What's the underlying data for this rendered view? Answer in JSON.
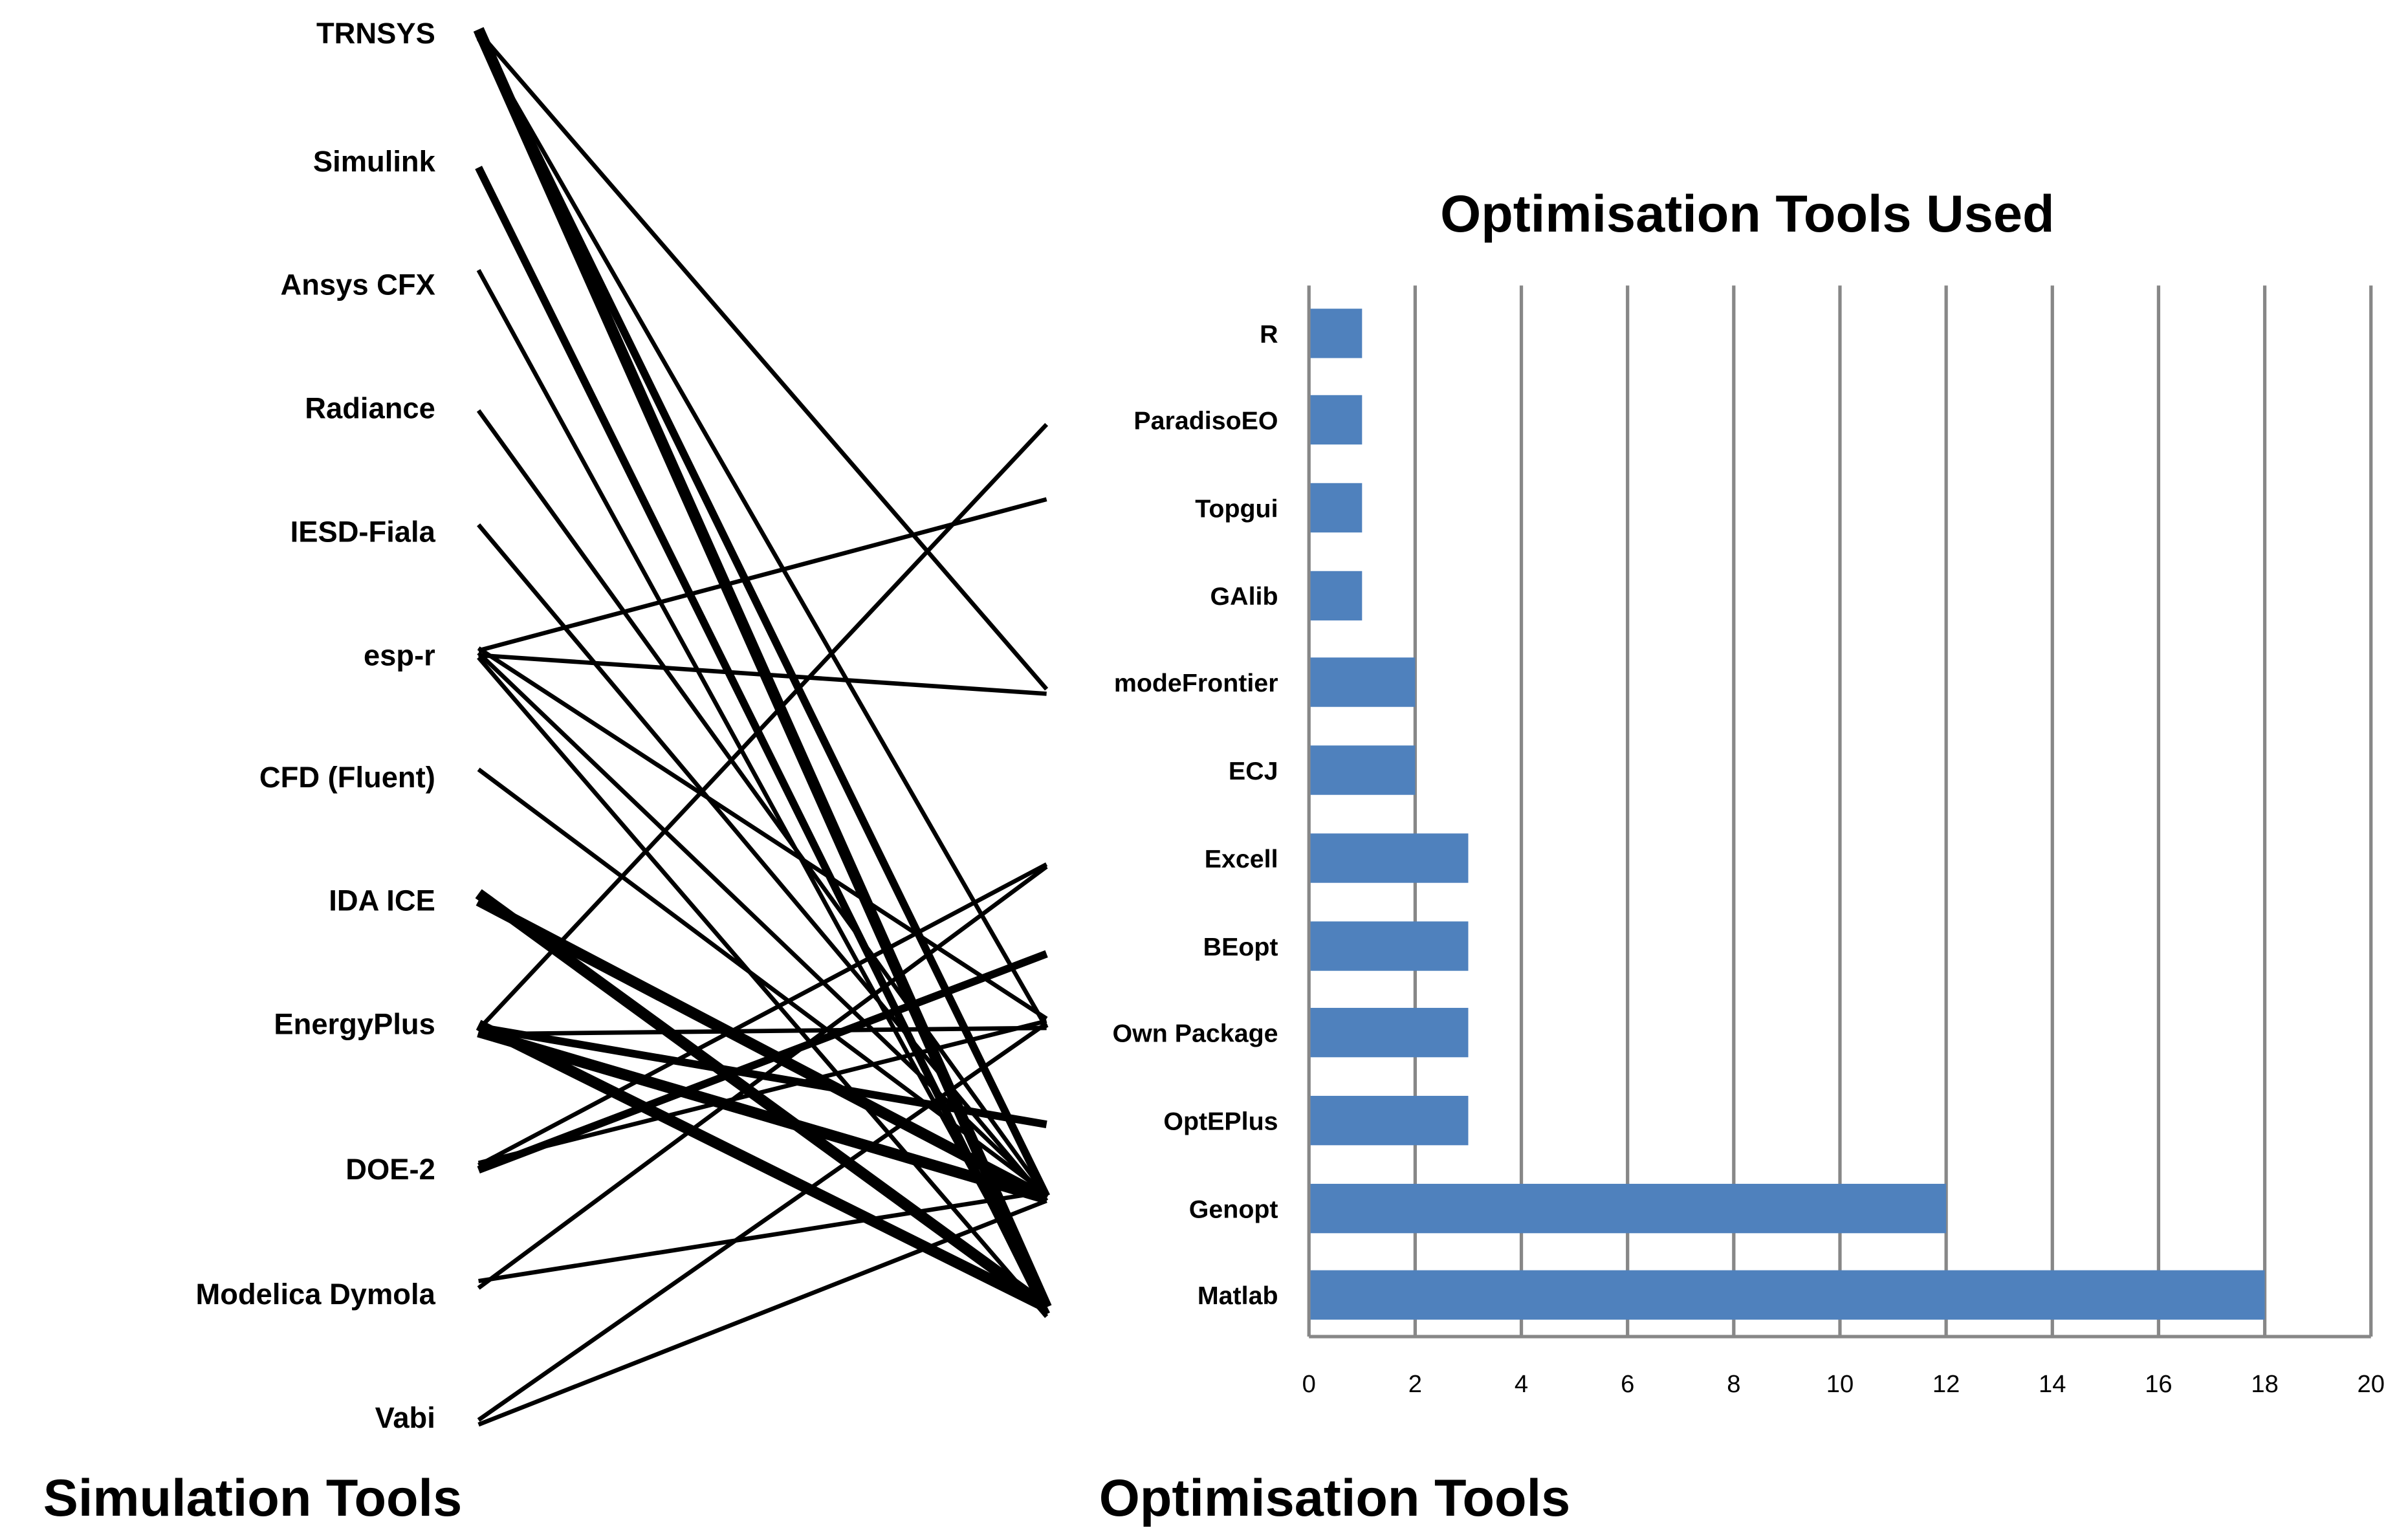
{
  "titles": {
    "left_axis": "Simulation Tools",
    "right_axis": "Optimisation Tools"
  },
  "simulation_tools": [
    "TRNSYS",
    "Simulink",
    "Ansys CFX",
    "Radiance",
    "IESD-Fiala",
    "esp-r",
    "CFD (Fluent)",
    "IDA ICE",
    "EnergyPlus",
    "DOE-2",
    "Modelica Dymola",
    "Vabi"
  ],
  "links": [
    {
      "from": "TRNSYS",
      "to": "Matlab",
      "weight": 3
    },
    {
      "from": "TRNSYS",
      "to": "Genopt",
      "weight": 2
    },
    {
      "from": "TRNSYS",
      "to": "Own Package",
      "weight": 1
    },
    {
      "from": "TRNSYS",
      "to": "modeFrontier",
      "weight": 1
    },
    {
      "from": "Simulink",
      "to": "Matlab",
      "weight": 2
    },
    {
      "from": "Ansys CFX",
      "to": "Matlab",
      "weight": 1
    },
    {
      "from": "Radiance",
      "to": "Genopt",
      "weight": 1
    },
    {
      "from": "IESD-Fiala",
      "to": "Genopt",
      "weight": 1
    },
    {
      "from": "esp-r",
      "to": "Topgui",
      "weight": 1
    },
    {
      "from": "esp-r",
      "to": "modeFrontier",
      "weight": 1
    },
    {
      "from": "esp-r",
      "to": "Own Package",
      "weight": 1
    },
    {
      "from": "esp-r",
      "to": "Genopt",
      "weight": 1
    },
    {
      "from": "esp-r",
      "to": "Matlab",
      "weight": 1
    },
    {
      "from": "CFD (Fluent)",
      "to": "Genopt",
      "weight": 1
    },
    {
      "from": "IDA ICE",
      "to": "Genopt",
      "weight": 3
    },
    {
      "from": "IDA ICE",
      "to": "Matlab",
      "weight": 3
    },
    {
      "from": "EnergyPlus",
      "to": "ParadisoEO",
      "weight": 1
    },
    {
      "from": "EnergyPlus",
      "to": "Own Package",
      "weight": 1
    },
    {
      "from": "EnergyPlus",
      "to": "OptEPlus",
      "weight": 2
    },
    {
      "from": "EnergyPlus",
      "to": "Genopt",
      "weight": 3
    },
    {
      "from": "EnergyPlus",
      "to": "Matlab",
      "weight": 3
    },
    {
      "from": "DOE-2",
      "to": "Excell",
      "weight": 1
    },
    {
      "from": "DOE-2",
      "to": "BEopt",
      "weight": 2
    },
    {
      "from": "DOE-2",
      "to": "Own Package",
      "weight": 1
    },
    {
      "from": "Modelica Dymola",
      "to": "Excell",
      "weight": 1
    },
    {
      "from": "Modelica Dymola",
      "to": "Genopt",
      "weight": 1
    },
    {
      "from": "Vabi",
      "to": "Own Package",
      "weight": 1
    },
    {
      "from": "Vabi",
      "to": "Genopt",
      "weight": 1
    }
  ],
  "chart_data": {
    "type": "bar",
    "orientation": "horizontal",
    "title": "Optimisation Tools Used",
    "categories": [
      "R",
      "ParadisoEO",
      "Topgui",
      "GAlib",
      "modeFrontier",
      "ECJ",
      "Excell",
      "BEopt",
      "Own Package",
      "OptEPlus",
      "Genopt",
      "Matlab"
    ],
    "values": [
      1,
      1,
      1,
      1,
      2,
      2,
      3,
      3,
      3,
      3,
      12,
      18
    ],
    "xlim": [
      0,
      20
    ],
    "xticks": [
      "0",
      "2",
      "4",
      "6",
      "8",
      "10",
      "12",
      "14",
      "16",
      "18",
      "20"
    ],
    "grid": true,
    "bar_color": "#4F81BD",
    "grid_color": "#878787"
  }
}
